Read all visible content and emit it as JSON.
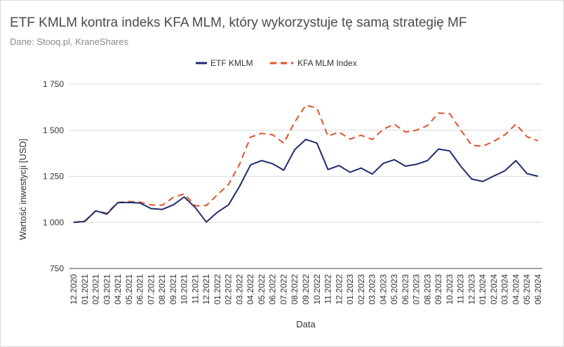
{
  "title": "ETF KMLM kontra indeks KFA MLM, który wykorzystuje tę samą strategię MF",
  "subtitle": "Dane: Stooq.pl, KraneShares",
  "colors": {
    "kmlm": "#1f2a6e",
    "kfa": "#e0532a",
    "grid": "#d9d9d9"
  },
  "chart_data": {
    "type": "line",
    "xlabel": "Data",
    "ylabel": "Wartość inwestycji [USD]",
    "ylim": [
      750,
      1750
    ],
    "yticks": [
      750,
      1000,
      1250,
      1500,
      1750
    ],
    "ytick_labels": [
      "750",
      "1 000",
      "1 250",
      "1 500",
      "1 750"
    ],
    "grid": true,
    "legend_position": "top-center",
    "x": [
      "12.2020",
      "01.2021",
      "02.2021",
      "03.2021",
      "04.2021",
      "05.2021",
      "06.2021",
      "07.2021",
      "08.2021",
      "09.2021",
      "10.2021",
      "11.2021",
      "12.2021",
      "01.2022",
      "02.2022",
      "03.2022",
      "04.2022",
      "05.2022",
      "06.2022",
      "07.2022",
      "08.2022",
      "09.2022",
      "10.2022",
      "11.2022",
      "12.2022",
      "01.2023",
      "02.2023",
      "03.2023",
      "04.2023",
      "05.2023",
      "06.2023",
      "07.2023",
      "08.2023",
      "09.2023",
      "10.2023",
      "11.2023",
      "12.2023",
      "01.2024",
      "02.2024",
      "03.2024",
      "04.2024",
      "05.2024",
      "06.2024"
    ],
    "series": [
      {
        "name": "ETF KMLM",
        "style": "solid",
        "values": [
          1000,
          1005,
          1063,
          1045,
          1107,
          1108,
          1105,
          1075,
          1070,
          1095,
          1138,
          1080,
          1002,
          1055,
          1095,
          1195,
          1312,
          1335,
          1318,
          1283,
          1395,
          1450,
          1430,
          1287,
          1308,
          1272,
          1295,
          1262,
          1320,
          1340,
          1305,
          1315,
          1335,
          1398,
          1388,
          1305,
          1235,
          1222,
          1252,
          1280,
          1335,
          1265,
          1250
        ]
      },
      {
        "name": "KFA MLM Index",
        "style": "dashed",
        "values": [
          1000,
          1008,
          1062,
          1050,
          1108,
          1113,
          1110,
          1095,
          1093,
          1135,
          1155,
          1090,
          1092,
          1150,
          1205,
          1315,
          1463,
          1483,
          1475,
          1430,
          1545,
          1636,
          1620,
          1468,
          1490,
          1452,
          1473,
          1450,
          1505,
          1533,
          1490,
          1500,
          1525,
          1593,
          1590,
          1502,
          1418,
          1413,
          1440,
          1475,
          1533,
          1465,
          1443
        ]
      }
    ]
  }
}
